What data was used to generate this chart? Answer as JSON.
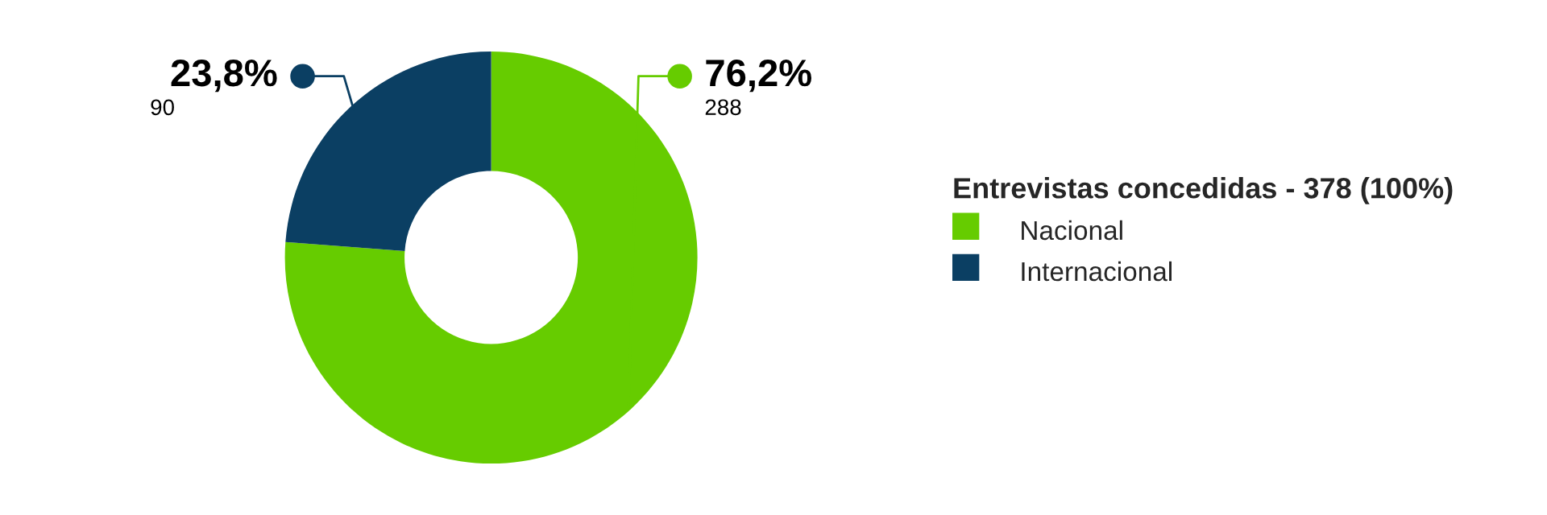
{
  "chart_data": {
    "type": "donut",
    "categories": [
      "Nacional",
      "Internacional"
    ],
    "values": [
      288,
      90
    ],
    "colors": [
      "#66cc00",
      "#0b3f63"
    ],
    "data_labels": true,
    "annotations": [
      "76,2%",
      "23,8%"
    ],
    "legend_title": "Entrevistas concedidas - 378 (100%)",
    "legend": "right"
  }
}
